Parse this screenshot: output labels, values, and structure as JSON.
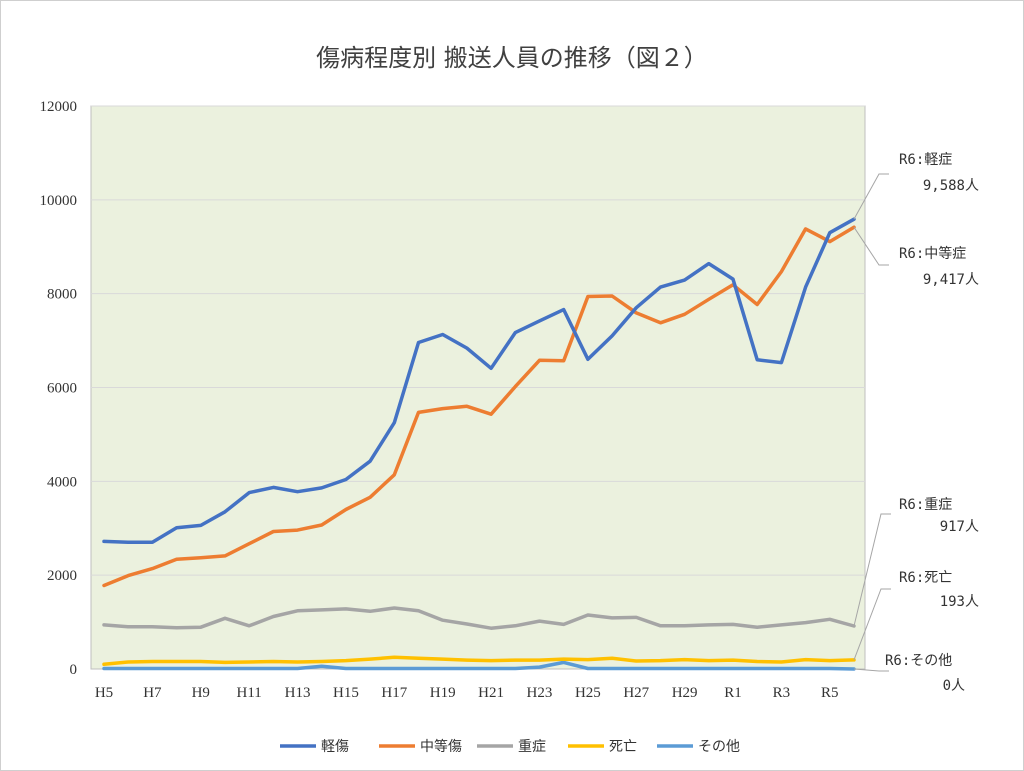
{
  "chart_data": {
    "type": "line",
    "title": "傷病程度別 搬送人員の推移（図２）",
    "xlabel": "",
    "ylabel": "",
    "ylim": [
      0,
      12000
    ],
    "yticks": [
      "0",
      "2000",
      "4000",
      "6000",
      "8000",
      "10000",
      "12000"
    ],
    "grid": true,
    "legend_position": "bottom",
    "plot_background": "#ebf1de",
    "categories": [
      "H5",
      "H6",
      "H7",
      "H8",
      "H9",
      "H10",
      "H11",
      "H12",
      "H13",
      "H14",
      "H15",
      "H16",
      "H17",
      "H18",
      "H19",
      "H20",
      "H21",
      "H22",
      "H23",
      "H24",
      "H25",
      "H26",
      "H27",
      "H28",
      "H29",
      "H30",
      "R1",
      "R2",
      "R3",
      "R4",
      "R5",
      "R6"
    ],
    "x_tick_labels": [
      "H5",
      "H7",
      "H9",
      "H11",
      "H13",
      "H15",
      "H17",
      "H19",
      "H21",
      "H23",
      "H25",
      "H27",
      "H29",
      "R1",
      "R3",
      "R5"
    ],
    "series": [
      {
        "name": "軽傷",
        "color": "#4472c4",
        "values": [
          2720,
          2700,
          2700,
          3010,
          3060,
          3350,
          3760,
          3870,
          3780,
          3860,
          4040,
          4430,
          5250,
          6960,
          7130,
          6840,
          6410,
          7170,
          7420,
          7660,
          6600,
          7100,
          7700,
          8140,
          8290,
          8640,
          8310,
          6590,
          6530,
          8140,
          9300,
          9588
        ]
      },
      {
        "name": "中等傷",
        "color": "#ed7d31",
        "values": [
          1780,
          1990,
          2140,
          2340,
          2370,
          2410,
          2670,
          2930,
          2960,
          3070,
          3400,
          3660,
          4140,
          5470,
          5550,
          5600,
          5430,
          6020,
          6580,
          6570,
          7940,
          7950,
          7590,
          7380,
          7560,
          7880,
          8190,
          7770,
          8470,
          9380,
          9110,
          9417
        ]
      },
      {
        "name": "重症",
        "color": "#a5a5a5",
        "values": [
          940,
          900,
          900,
          880,
          890,
          1080,
          920,
          1120,
          1240,
          1260,
          1280,
          1230,
          1300,
          1240,
          1040,
          960,
          870,
          920,
          1020,
          950,
          1150,
          1090,
          1100,
          920,
          920,
          940,
          950,
          890,
          940,
          990,
          1060,
          917
        ]
      },
      {
        "name": "死亡",
        "color": "#ffc000",
        "values": [
          100,
          150,
          160,
          160,
          160,
          140,
          150,
          160,
          150,
          160,
          180,
          210,
          250,
          230,
          210,
          190,
          180,
          190,
          190,
          210,
          200,
          230,
          170,
          180,
          200,
          180,
          190,
          160,
          150,
          200,
          180,
          193
        ]
      },
      {
        "name": "その他",
        "color": "#5b9bd5",
        "values": [
          10,
          10,
          10,
          10,
          10,
          10,
          10,
          10,
          10,
          60,
          10,
          10,
          10,
          10,
          10,
          10,
          10,
          10,
          40,
          140,
          10,
          10,
          10,
          10,
          10,
          10,
          10,
          10,
          10,
          10,
          10,
          0
        ]
      }
    ],
    "annotations": [
      {
        "series": "軽傷",
        "line1": "R6:軽症",
        "line2": "9,588人"
      },
      {
        "series": "中等傷",
        "line1": "R6:中等症",
        "line2": "9,417人"
      },
      {
        "series": "重症",
        "line1": "R6:重症",
        "line2": "917人"
      },
      {
        "series": "死亡",
        "line1": "R6:死亡",
        "line2": "193人"
      },
      {
        "series": "その他",
        "line1": "R6:その他",
        "line2": "0人"
      }
    ]
  }
}
